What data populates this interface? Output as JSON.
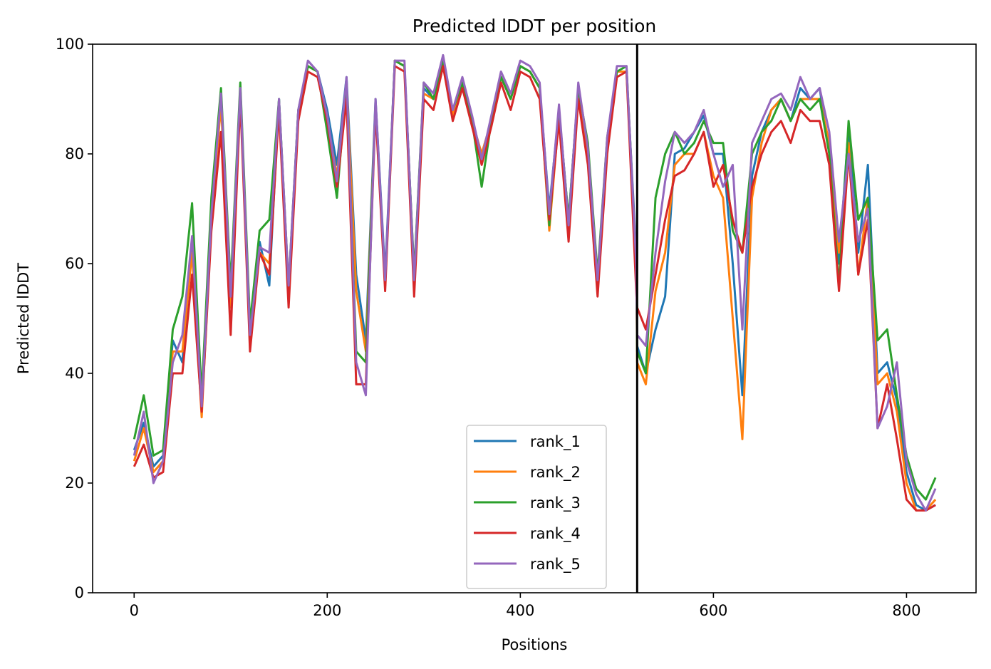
{
  "chart_data": {
    "type": "line",
    "title": "Predicted lDDT per position",
    "xlabel": "Positions",
    "ylabel": "Predicted lDDT",
    "xlim": [
      -43,
      872
    ],
    "ylim": [
      0,
      100
    ],
    "xticks": [
      0,
      200,
      400,
      600,
      800
    ],
    "yticks": [
      0,
      20,
      40,
      60,
      80,
      100
    ],
    "grid": false,
    "legend_position": "lower-center-right",
    "vline_x": 521,
    "series_x": [
      0,
      10,
      20,
      30,
      40,
      50,
      60,
      70,
      80,
      90,
      100,
      110,
      120,
      130,
      140,
      150,
      160,
      170,
      180,
      190,
      200,
      210,
      220,
      230,
      240,
      250,
      260,
      270,
      280,
      290,
      300,
      310,
      320,
      330,
      340,
      350,
      360,
      370,
      380,
      390,
      400,
      410,
      420,
      430,
      440,
      450,
      460,
      470,
      480,
      490,
      500,
      510,
      520,
      521,
      530,
      540,
      550,
      560,
      570,
      580,
      590,
      600,
      610,
      620,
      630,
      640,
      650,
      660,
      670,
      680,
      690,
      700,
      710,
      720,
      730,
      740,
      750,
      760,
      770,
      780,
      790,
      800,
      810,
      820,
      830
    ],
    "series": [
      {
        "name": "rank_1",
        "color": "#1f77b4",
        "values": [
          26,
          31,
          23,
          25,
          46,
          42,
          64,
          35,
          70,
          90,
          55,
          92,
          47,
          64,
          56,
          90,
          55,
          88,
          96,
          95,
          88,
          78,
          94,
          58,
          46,
          90,
          58,
          97,
          96,
          58,
          92,
          90,
          97,
          88,
          93,
          86,
          80,
          86,
          94,
          90,
          96,
          95,
          92,
          70,
          88,
          68,
          92,
          80,
          56,
          82,
          95,
          95,
          62,
          45,
          40,
          48,
          54,
          80,
          81,
          84,
          87,
          80,
          80,
          60,
          36,
          76,
          84,
          88,
          90,
          86,
          92,
          90,
          92,
          80,
          60,
          85,
          62,
          78,
          40,
          42,
          35,
          22,
          16,
          15,
          16
        ]
      },
      {
        "name": "rank_2",
        "color": "#ff7f0e",
        "values": [
          24,
          30,
          22,
          24,
          44,
          44,
          62,
          32,
          68,
          89,
          52,
          91,
          48,
          62,
          60,
          89,
          54,
          87,
          96,
          95,
          86,
          76,
          93,
          55,
          44,
          89,
          56,
          97,
          96,
          56,
          91,
          90,
          97,
          87,
          93,
          86,
          80,
          86,
          94,
          90,
          96,
          95,
          92,
          66,
          87,
          66,
          92,
          80,
          55,
          82,
          95,
          95,
          60,
          42,
          38,
          55,
          62,
          78,
          80,
          80,
          84,
          76,
          72,
          50,
          28,
          72,
          82,
          88,
          90,
          86,
          90,
          90,
          90,
          82,
          62,
          82,
          58,
          72,
          38,
          40,
          33,
          20,
          15,
          15,
          17
        ]
      },
      {
        "name": "rank_3",
        "color": "#2ca02c",
        "values": [
          28,
          36,
          25,
          26,
          48,
          54,
          71,
          36,
          72,
          92,
          56,
          93,
          49,
          66,
          68,
          90,
          56,
          88,
          96,
          95,
          84,
          72,
          93,
          44,
          42,
          89,
          56,
          97,
          96,
          58,
          93,
          90,
          97,
          88,
          93,
          86,
          74,
          86,
          94,
          90,
          96,
          95,
          92,
          67,
          88,
          68,
          92,
          82,
          58,
          83,
          95,
          96,
          60,
          44,
          40,
          72,
          80,
          84,
          80,
          82,
          86,
          82,
          82,
          66,
          62,
          80,
          84,
          86,
          90,
          86,
          90,
          88,
          90,
          80,
          56,
          86,
          68,
          72,
          46,
          48,
          36,
          25,
          19,
          17,
          21
        ]
      },
      {
        "name": "rank_4",
        "color": "#d62728",
        "values": [
          23,
          27,
          21,
          22,
          40,
          40,
          58,
          33,
          66,
          84,
          47,
          90,
          44,
          62,
          58,
          88,
          52,
          86,
          95,
          94,
          86,
          74,
          90,
          38,
          38,
          88,
          55,
          96,
          95,
          54,
          90,
          88,
          96,
          86,
          92,
          85,
          78,
          85,
          93,
          88,
          95,
          94,
          90,
          68,
          86,
          64,
          90,
          78,
          54,
          80,
          94,
          95,
          55,
          52,
          48,
          58,
          68,
          76,
          77,
          80,
          84,
          74,
          78,
          68,
          62,
          74,
          80,
          84,
          86,
          82,
          88,
          86,
          86,
          78,
          55,
          80,
          58,
          68,
          30,
          38,
          28,
          17,
          15,
          15,
          16
        ]
      },
      {
        "name": "rank_5",
        "color": "#9467bd",
        "values": [
          25,
          33,
          20,
          24,
          42,
          47,
          65,
          34,
          69,
          91,
          54,
          92,
          47,
          63,
          62,
          90,
          56,
          88,
          97,
          95,
          87,
          75,
          94,
          42,
          36,
          90,
          57,
          97,
          97,
          57,
          93,
          91,
          98,
          88,
          94,
          87,
          79,
          87,
          95,
          91,
          97,
          96,
          93,
          69,
          89,
          67,
          93,
          81,
          57,
          83,
          96,
          96,
          60,
          47,
          45,
          62,
          75,
          84,
          82,
          84,
          88,
          80,
          74,
          78,
          48,
          82,
          86,
          90,
          91,
          88,
          94,
          90,
          92,
          84,
          64,
          80,
          64,
          70,
          30,
          34,
          42,
          24,
          18,
          15,
          19
        ]
      }
    ]
  }
}
